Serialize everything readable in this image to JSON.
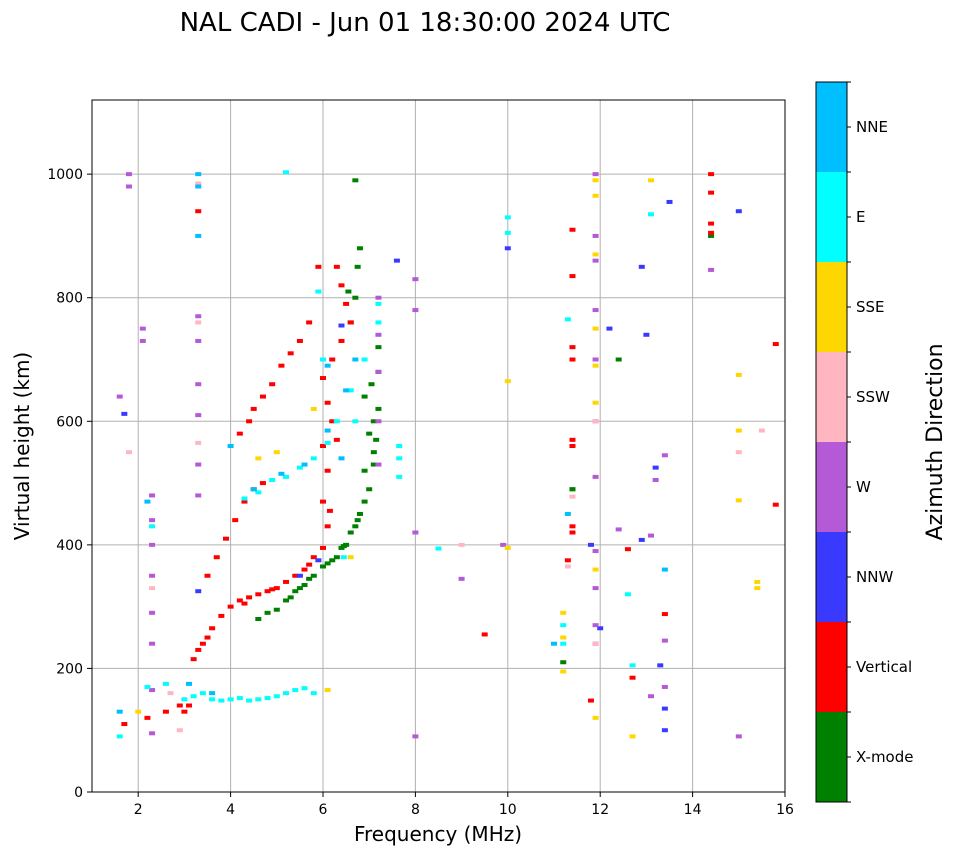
{
  "chart_data": {
    "type": "scatter",
    "title": "NAL CADI - Jun 01 18:30:00 2024 UTC",
    "xlabel": "Frequency (MHz)",
    "ylabel": "Virtual height (km)",
    "xlim": [
      1,
      16
    ],
    "ylim": [
      0,
      1120
    ],
    "xticks": [
      2,
      4,
      6,
      8,
      10,
      12,
      14,
      16
    ],
    "yticks": [
      0,
      200,
      400,
      600,
      800,
      1000
    ],
    "grid": true,
    "colorbar": {
      "title": "Azimuth Direction",
      "categories": [
        {
          "name": "X-mode",
          "color": "#008000"
        },
        {
          "name": "Vertical",
          "color": "#ff0000"
        },
        {
          "name": "NNW",
          "color": "#3a3aff"
        },
        {
          "name": "W",
          "color": "#b45ad6"
        },
        {
          "name": "SSW",
          "color": "#ffb6c1"
        },
        {
          "name": "SSE",
          "color": "#ffd700"
        },
        {
          "name": "E",
          "color": "#00ffff"
        },
        {
          "name": "NNE",
          "color": "#00bfff"
        }
      ]
    },
    "series": [
      {
        "name": "X-mode",
        "points": [
          [
            5.0,
            295
          ],
          [
            5.2,
            310
          ],
          [
            5.4,
            325
          ],
          [
            5.6,
            335
          ],
          [
            5.8,
            350
          ],
          [
            6.0,
            365
          ],
          [
            6.2,
            375
          ],
          [
            6.4,
            395
          ],
          [
            6.6,
            420
          ],
          [
            6.8,
            450
          ],
          [
            7.0,
            490
          ],
          [
            7.1,
            530
          ],
          [
            7.15,
            570
          ],
          [
            7.2,
            620
          ],
          [
            7.2,
            680
          ],
          [
            4.6,
            280
          ],
          [
            4.8,
            290
          ],
          [
            5.5,
            330
          ],
          [
            6.3,
            380
          ],
          [
            6.5,
            400
          ],
          [
            6.7,
            430
          ],
          [
            6.9,
            470
          ],
          [
            6.6,
            760
          ],
          [
            6.7,
            800
          ],
          [
            6.75,
            850
          ],
          [
            6.8,
            880
          ],
          [
            6.7,
            990
          ],
          [
            11.2,
            210
          ],
          [
            11.4,
            490
          ],
          [
            11.4,
            490
          ],
          [
            12.4,
            700
          ],
          [
            14.4,
            900
          ],
          [
            7.1,
            600
          ],
          [
            6.9,
            520
          ],
          [
            6.9,
            640
          ],
          [
            7.0,
            580
          ],
          [
            7.05,
            660
          ],
          [
            5.3,
            315
          ],
          [
            5.7,
            345
          ],
          [
            6.1,
            370
          ],
          [
            6.45,
            398
          ],
          [
            6.75,
            440
          ],
          [
            7.1,
            550
          ],
          [
            7.2,
            720
          ],
          [
            6.55,
            810
          ]
        ]
      },
      {
        "name": "Vertical",
        "points": [
          [
            1.7,
            110
          ],
          [
            2.2,
            120
          ],
          [
            2.6,
            130
          ],
          [
            2.9,
            140
          ],
          [
            3.2,
            215
          ],
          [
            3.4,
            240
          ],
          [
            3.6,
            265
          ],
          [
            3.8,
            285
          ],
          [
            4.0,
            300
          ],
          [
            4.2,
            310
          ],
          [
            4.4,
            315
          ],
          [
            4.6,
            320
          ],
          [
            4.8,
            325
          ],
          [
            5.0,
            330
          ],
          [
            5.2,
            340
          ],
          [
            5.4,
            350
          ],
          [
            5.6,
            360
          ],
          [
            5.8,
            380
          ],
          [
            6.0,
            395
          ],
          [
            6.1,
            430
          ],
          [
            6.0,
            470
          ],
          [
            6.1,
            520
          ],
          [
            3.5,
            350
          ],
          [
            3.7,
            380
          ],
          [
            3.9,
            410
          ],
          [
            4.1,
            440
          ],
          [
            4.3,
            470
          ],
          [
            4.5,
            490
          ],
          [
            4.7,
            500
          ],
          [
            4.4,
            600
          ],
          [
            4.5,
            620
          ],
          [
            4.7,
            640
          ],
          [
            4.9,
            660
          ],
          [
            5.1,
            690
          ],
          [
            5.3,
            710
          ],
          [
            5.5,
            730
          ],
          [
            5.7,
            760
          ],
          [
            5.9,
            850
          ],
          [
            6.3,
            850
          ],
          [
            6.4,
            820
          ],
          [
            6.5,
            790
          ],
          [
            6.6,
            760
          ],
          [
            6.4,
            730
          ],
          [
            6.2,
            700
          ],
          [
            6.0,
            670
          ],
          [
            6.1,
            630
          ],
          [
            6.2,
            600
          ],
          [
            6.3,
            570
          ],
          [
            6.0,
            560
          ],
          [
            4.2,
            580
          ],
          [
            3.3,
            940
          ],
          [
            11.4,
            910
          ],
          [
            11.4,
            720
          ],
          [
            11.4,
            700
          ],
          [
            11.4,
            570
          ],
          [
            11.4,
            560
          ],
          [
            11.4,
            420
          ],
          [
            11.4,
            430
          ],
          [
            11.3,
            375
          ],
          [
            11.4,
            835
          ],
          [
            12.6,
            393
          ],
          [
            12.7,
            185
          ],
          [
            11.8,
            148
          ],
          [
            9.5,
            255
          ],
          [
            13.4,
            288
          ],
          [
            14.4,
            1000
          ],
          [
            14.4,
            970
          ],
          [
            14.4,
            920
          ],
          [
            14.4,
            905
          ],
          [
            15.8,
            465
          ],
          [
            15.8,
            725
          ],
          [
            3.0,
            130
          ],
          [
            3.1,
            140
          ],
          [
            3.3,
            230
          ],
          [
            3.5,
            250
          ],
          [
            4.3,
            305
          ],
          [
            4.9,
            328
          ],
          [
            5.7,
            368
          ],
          [
            6.15,
            455
          ]
        ]
      },
      {
        "name": "NNW",
        "points": [
          [
            1.7,
            612
          ],
          [
            3.3,
            325
          ],
          [
            6.4,
            755
          ],
          [
            7.6,
            860
          ],
          [
            10.0,
            880
          ],
          [
            11.8,
            400
          ],
          [
            12.2,
            750
          ],
          [
            12.9,
            850
          ],
          [
            13.0,
            740
          ],
          [
            12.9,
            408
          ],
          [
            13.2,
            525
          ],
          [
            13.4,
            135
          ],
          [
            13.4,
            100
          ],
          [
            13.3,
            205
          ],
          [
            15.0,
            940
          ],
          [
            13.5,
            955
          ],
          [
            5.5,
            350
          ],
          [
            12.0,
            265
          ],
          [
            5.9,
            375
          ]
        ]
      },
      {
        "name": "W",
        "points": [
          [
            1.6,
            640
          ],
          [
            2.1,
            750
          ],
          [
            2.1,
            730
          ],
          [
            2.3,
            480
          ],
          [
            2.3,
            440
          ],
          [
            2.3,
            400
          ],
          [
            2.3,
            350
          ],
          [
            2.3,
            290
          ],
          [
            2.3,
            240
          ],
          [
            2.3,
            165
          ],
          [
            2.3,
            95
          ],
          [
            3.3,
            770
          ],
          [
            3.3,
            730
          ],
          [
            3.3,
            660
          ],
          [
            3.3,
            610
          ],
          [
            3.3,
            530
          ],
          [
            3.3,
            480
          ],
          [
            7.2,
            800
          ],
          [
            7.2,
            740
          ],
          [
            7.2,
            680
          ],
          [
            7.2,
            600
          ],
          [
            7.2,
            530
          ],
          [
            8.0,
            830
          ],
          [
            8.0,
            780
          ],
          [
            8.0,
            420
          ],
          [
            8.0,
            90
          ],
          [
            9.0,
            345
          ],
          [
            9.9,
            400
          ],
          [
            11.9,
            1000
          ],
          [
            11.9,
            900
          ],
          [
            11.9,
            860
          ],
          [
            11.9,
            780
          ],
          [
            11.9,
            700
          ],
          [
            11.9,
            600
          ],
          [
            11.9,
            510
          ],
          [
            11.9,
            390
          ],
          [
            11.9,
            330
          ],
          [
            11.9,
            270
          ],
          [
            11.9,
            240
          ],
          [
            12.4,
            425
          ],
          [
            13.1,
            415
          ],
          [
            13.2,
            505
          ],
          [
            13.4,
            545
          ],
          [
            13.4,
            245
          ],
          [
            13.4,
            170
          ],
          [
            13.1,
            155
          ],
          [
            14.4,
            845
          ],
          [
            15.0,
            90
          ],
          [
            1.8,
            1000
          ],
          [
            1.8,
            980
          ]
        ]
      },
      {
        "name": "SSW",
        "points": [
          [
            1.8,
            550
          ],
          [
            2.3,
            330
          ],
          [
            2.7,
            160
          ],
          [
            3.3,
            565
          ],
          [
            3.3,
            985
          ],
          [
            9.0,
            400
          ],
          [
            11.4,
            478
          ],
          [
            11.3,
            365
          ],
          [
            11.9,
            240
          ],
          [
            15.0,
            550
          ],
          [
            15.5,
            585
          ],
          [
            2.9,
            100
          ],
          [
            3.3,
            760
          ],
          [
            11.9,
            600
          ]
        ]
      },
      {
        "name": "SSE",
        "points": [
          [
            2.0,
            130
          ],
          [
            4.6,
            540
          ],
          [
            5.0,
            550
          ],
          [
            5.8,
            620
          ],
          [
            6.1,
            165
          ],
          [
            6.6,
            380
          ],
          [
            10.0,
            665
          ],
          [
            10.0,
            395
          ],
          [
            11.2,
            290
          ],
          [
            11.2,
            250
          ],
          [
            11.2,
            195
          ],
          [
            11.9,
            990
          ],
          [
            11.9,
            965
          ],
          [
            11.9,
            870
          ],
          [
            11.9,
            750
          ],
          [
            11.9,
            690
          ],
          [
            11.9,
            630
          ],
          [
            11.9,
            360
          ],
          [
            11.9,
            120
          ],
          [
            12.7,
            90
          ],
          [
            13.1,
            990
          ],
          [
            15.0,
            675
          ],
          [
            15.0,
            585
          ],
          [
            15.0,
            472
          ],
          [
            15.4,
            340
          ],
          [
            15.4,
            330
          ]
        ]
      },
      {
        "name": "E",
        "points": [
          [
            1.6,
            90
          ],
          [
            2.3,
            430
          ],
          [
            3.0,
            150
          ],
          [
            3.2,
            155
          ],
          [
            3.4,
            160
          ],
          [
            3.6,
            150
          ],
          [
            3.8,
            148
          ],
          [
            4.0,
            150
          ],
          [
            4.2,
            152
          ],
          [
            4.4,
            148
          ],
          [
            4.6,
            150
          ],
          [
            4.8,
            152
          ],
          [
            5.0,
            155
          ],
          [
            5.2,
            160
          ],
          [
            5.4,
            165
          ],
          [
            5.6,
            168
          ],
          [
            5.8,
            160
          ],
          [
            4.3,
            475
          ],
          [
            4.6,
            485
          ],
          [
            4.9,
            505
          ],
          [
            5.2,
            510
          ],
          [
            5.5,
            525
          ],
          [
            5.8,
            540
          ],
          [
            6.1,
            565
          ],
          [
            6.3,
            600
          ],
          [
            6.6,
            650
          ],
          [
            6.9,
            700
          ],
          [
            7.2,
            790
          ],
          [
            7.2,
            760
          ],
          [
            6.0,
            700
          ],
          [
            5.9,
            810
          ],
          [
            7.65,
            510
          ],
          [
            7.65,
            540
          ],
          [
            7.65,
            560
          ],
          [
            8.5,
            394
          ],
          [
            10.0,
            930
          ],
          [
            10.0,
            905
          ],
          [
            11.2,
            270
          ],
          [
            11.2,
            240
          ],
          [
            11.3,
            765
          ],
          [
            12.6,
            320
          ],
          [
            12.7,
            205
          ],
          [
            13.1,
            935
          ],
          [
            2.2,
            170
          ],
          [
            2.6,
            175
          ],
          [
            5.2,
            1003
          ],
          [
            6.45,
            380
          ],
          [
            6.7,
            600
          ]
        ]
      },
      {
        "name": "NNE",
        "points": [
          [
            1.6,
            130
          ],
          [
            2.2,
            470
          ],
          [
            3.3,
            1000
          ],
          [
            3.3,
            980
          ],
          [
            3.3,
            900
          ],
          [
            3.1,
            175
          ],
          [
            4.0,
            560
          ],
          [
            4.5,
            490
          ],
          [
            5.1,
            515
          ],
          [
            5.6,
            530
          ],
          [
            6.1,
            690
          ],
          [
            6.5,
            650
          ],
          [
            6.7,
            700
          ],
          [
            11.3,
            450
          ],
          [
            11.0,
            240
          ],
          [
            13.4,
            360
          ],
          [
            3.6,
            160
          ],
          [
            6.4,
            540
          ],
          [
            6.1,
            585
          ]
        ]
      }
    ]
  }
}
